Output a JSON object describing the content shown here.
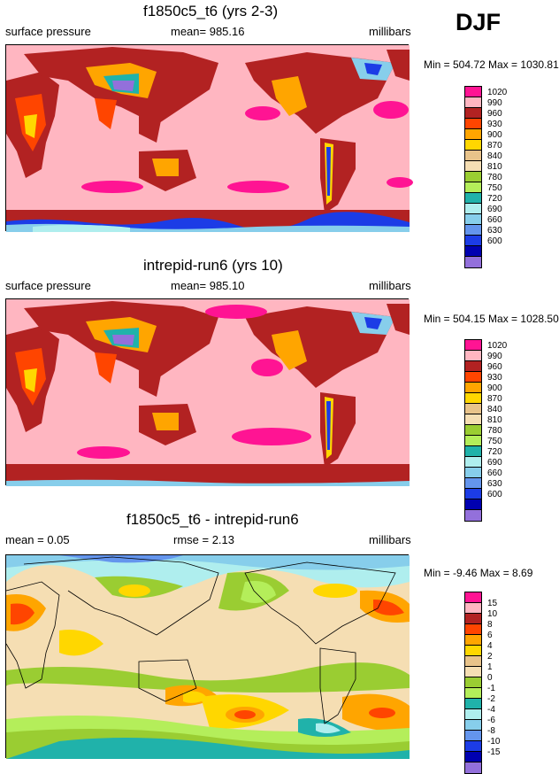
{
  "season": "DJF",
  "colors": {
    "abs": [
      "#ff1493",
      "#ffb6c1",
      "#b22222",
      "#ff4500",
      "#ffa500",
      "#ffd700",
      "#e8c38a",
      "#f5deb3",
      "#9acd32",
      "#b4ee5a",
      "#20b2aa",
      "#afeeee",
      "#87ceeb",
      "#6495ed",
      "#1c3ce6",
      "#0000b0",
      "#9370db"
    ],
    "diff": [
      "#ff1493",
      "#ffb6c1",
      "#b22222",
      "#ff4500",
      "#ffa500",
      "#ffd700",
      "#e8c38a",
      "#f5deb3",
      "#9acd32",
      "#b4ee5a",
      "#20b2aa",
      "#afeeee",
      "#87ceeb",
      "#6495ed",
      "#1c3ce6",
      "#0000b0",
      "#9370db"
    ]
  },
  "panels": [
    {
      "title": "f1850c5_t6 (yrs 2-3)",
      "variable": "surface pressure",
      "stat": "mean= 985.16",
      "units": "millibars",
      "minmax": "Min = 504.72 Max = 1030.81",
      "levels": [
        "1020",
        "990",
        "960",
        "930",
        "900",
        "870",
        "840",
        "810",
        "780",
        "750",
        "720",
        "690",
        "660",
        "630",
        "600"
      ]
    },
    {
      "title": "intrepid-run6 (yrs 10)",
      "variable": "surface pressure",
      "stat": "mean= 985.10",
      "units": "millibars",
      "minmax": "Min = 504.15 Max = 1028.50",
      "levels": [
        "1020",
        "990",
        "960",
        "930",
        "900",
        "870",
        "840",
        "810",
        "780",
        "750",
        "720",
        "690",
        "660",
        "630",
        "600"
      ]
    },
    {
      "title": "f1850c5_t6 - intrepid-run6",
      "variable": "mean =  0.05",
      "stat": "rmse =   2.13",
      "units": "millibars",
      "minmax": "Min =  -9.46 Max =   8.69",
      "levels": [
        "15",
        "10",
        "8",
        "6",
        "4",
        "2",
        "1",
        "0",
        "-1",
        "-2",
        "-4",
        "-6",
        "-8",
        "-10",
        "-15"
      ]
    }
  ]
}
